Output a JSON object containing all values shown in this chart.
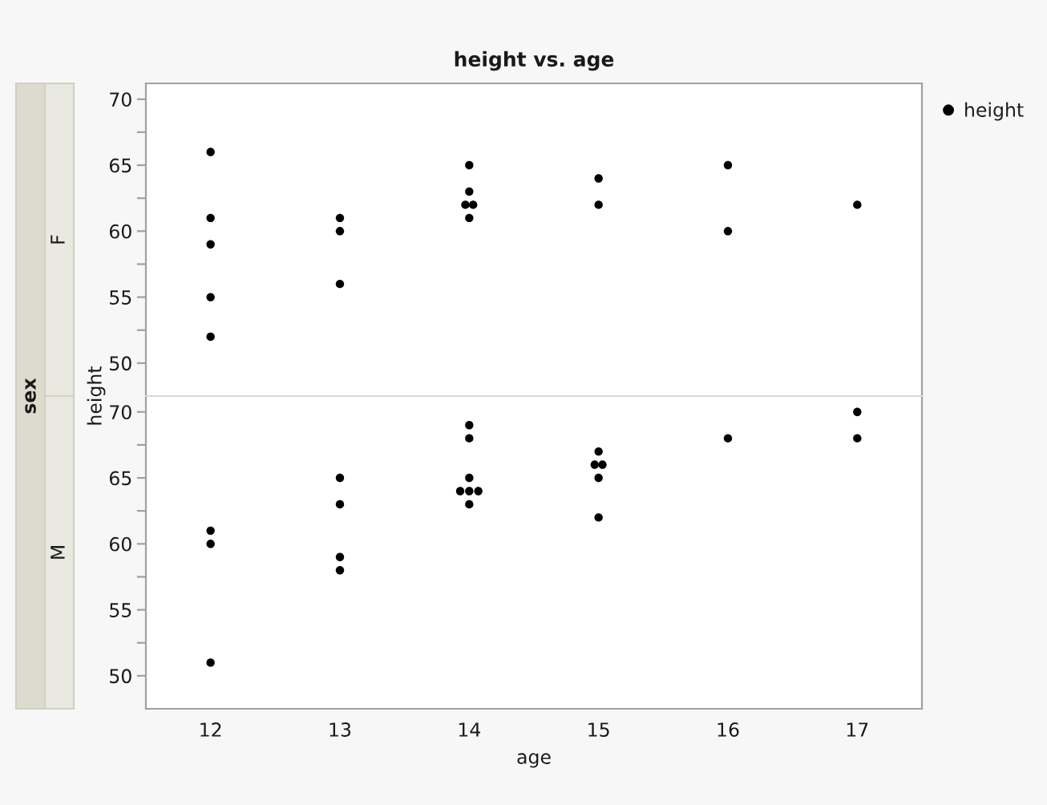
{
  "chart_data": [
    {
      "type": "scatter",
      "title": "height vs. age",
      "subtitle": "F",
      "ylabel": "height",
      "annotations": [
        "sex"
      ],
      "x": [
        12,
        12,
        12,
        12,
        12,
        13,
        13,
        13,
        14,
        14,
        13.97,
        14.03,
        14,
        15,
        15,
        16,
        16,
        17
      ],
      "series": [
        {
          "name": "height",
          "color": "#000000",
          "values": [
            66,
            61,
            59,
            55,
            52,
            61,
            60,
            56,
            65,
            63,
            62,
            62,
            61,
            64,
            62,
            65,
            60,
            62
          ]
        }
      ],
      "xlim": [
        11.5,
        17.5
      ],
      "xticks": [
        12,
        13,
        14,
        15,
        16,
        17
      ],
      "ylim": [
        47.5,
        71.2
      ],
      "yticks": [
        50,
        {
          "value": 52.5,
          "label": null
        },
        55,
        {
          "value": 57.5,
          "label": null
        },
        60,
        {
          "value": 62.5,
          "label": null
        },
        65,
        {
          "value": 67.5,
          "label": null
        },
        70
      ],
      "tick_labels": "y",
      "legend": "top right",
      "marker": "circle"
    },
    {
      "type": "scatter",
      "subtitle": "M",
      "xlabel": "age",
      "x": [
        12,
        12,
        12,
        13,
        13,
        13,
        13,
        14,
        14,
        14,
        13.93,
        14,
        14.07,
        14,
        15,
        14.97,
        15.03,
        15,
        15,
        16,
        17,
        17
      ],
      "series": [
        {
          "color": "#000000",
          "values": [
            61,
            60,
            51,
            65,
            63,
            59,
            58,
            69,
            68,
            65,
            64,
            64,
            64,
            63,
            67,
            66,
            66,
            65,
            62,
            68,
            70,
            68
          ]
        }
      ],
      "xlim": [
        11.5,
        17.5
      ],
      "xticks": [
        12,
        13,
        14,
        15,
        16,
        17
      ],
      "ylim": [
        47.5,
        71.2
      ],
      "yticks": [
        50,
        {
          "value": 52.5,
          "label": null
        },
        55,
        {
          "value": 57.5,
          "label": null
        },
        60,
        {
          "value": 62.5,
          "label": null
        },
        65,
        {
          "value": 67.5,
          "label": null
        },
        70
      ],
      "marker": "circle"
    }
  ]
}
